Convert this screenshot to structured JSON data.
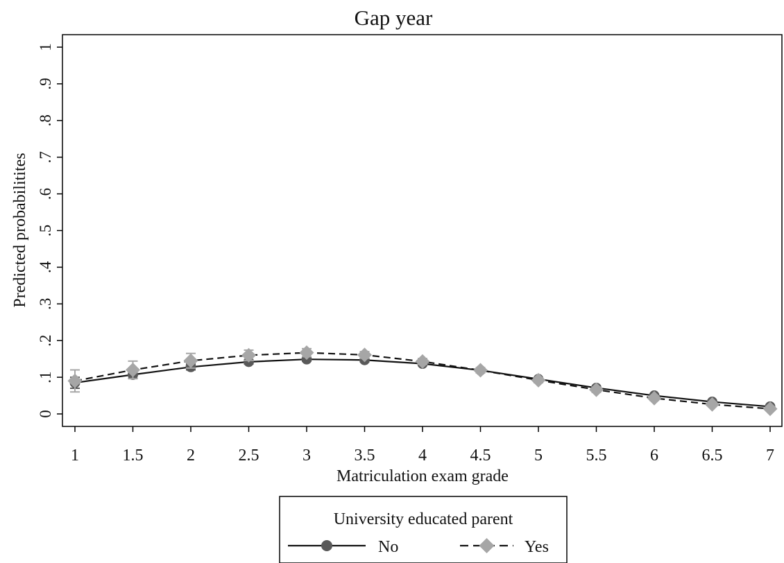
{
  "chart_data": {
    "type": "line",
    "title": "Gap year",
    "xlabel": "Matriculation exam grade",
    "ylabel": "Predicted probabilitites",
    "xlim": [
      1,
      7
    ],
    "ylim": [
      0,
      1
    ],
    "x": [
      1,
      1.5,
      2,
      2.5,
      3,
      3.5,
      4,
      4.5,
      5,
      5.5,
      6,
      6.5,
      7
    ],
    "x_tick_labels": [
      "1",
      "1.5",
      "2",
      "2.5",
      "3",
      "3.5",
      "4",
      "4.5",
      "5",
      "5.5",
      "6",
      "6.5",
      "7"
    ],
    "y_ticks": [
      0,
      0.1,
      0.2,
      0.3,
      0.4,
      0.5,
      0.6,
      0.7,
      0.8,
      0.9,
      1
    ],
    "y_tick_labels": [
      "0",
      ".1",
      ".2",
      ".3",
      ".4",
      ".5",
      ".6",
      ".7",
      ".8",
      ".9",
      "1"
    ],
    "legend": {
      "title": "University educated parent",
      "position": "bottom"
    },
    "series": [
      {
        "name": "No",
        "line_style": "solid",
        "marker": "circle",
        "color": "#595959",
        "values": [
          0.085,
          0.107,
          0.128,
          0.142,
          0.149,
          0.147,
          0.137,
          0.119,
          0.095,
          0.071,
          0.05,
          0.033,
          0.02
        ],
        "ci_low": [
          0.07,
          0.097,
          0.12,
          0.136,
          0.144,
          0.142,
          0.132,
          0.114,
          0.091,
          0.067,
          0.046,
          0.029,
          0.016
        ],
        "ci_high": [
          0.1,
          0.117,
          0.136,
          0.148,
          0.154,
          0.152,
          0.142,
          0.124,
          0.099,
          0.075,
          0.054,
          0.037,
          0.024
        ]
      },
      {
        "name": "Yes",
        "line_style": "dashed",
        "marker": "diamond",
        "color": "#a6a6a6",
        "values": [
          0.09,
          0.12,
          0.145,
          0.16,
          0.167,
          0.161,
          0.143,
          0.119,
          0.092,
          0.066,
          0.043,
          0.026,
          0.014
        ],
        "ci_low": [
          0.06,
          0.096,
          0.125,
          0.146,
          0.156,
          0.152,
          0.135,
          0.112,
          0.085,
          0.059,
          0.037,
          0.021,
          0.009
        ],
        "ci_high": [
          0.12,
          0.144,
          0.165,
          0.174,
          0.178,
          0.17,
          0.151,
          0.126,
          0.099,
          0.073,
          0.049,
          0.031,
          0.019
        ]
      }
    ]
  }
}
